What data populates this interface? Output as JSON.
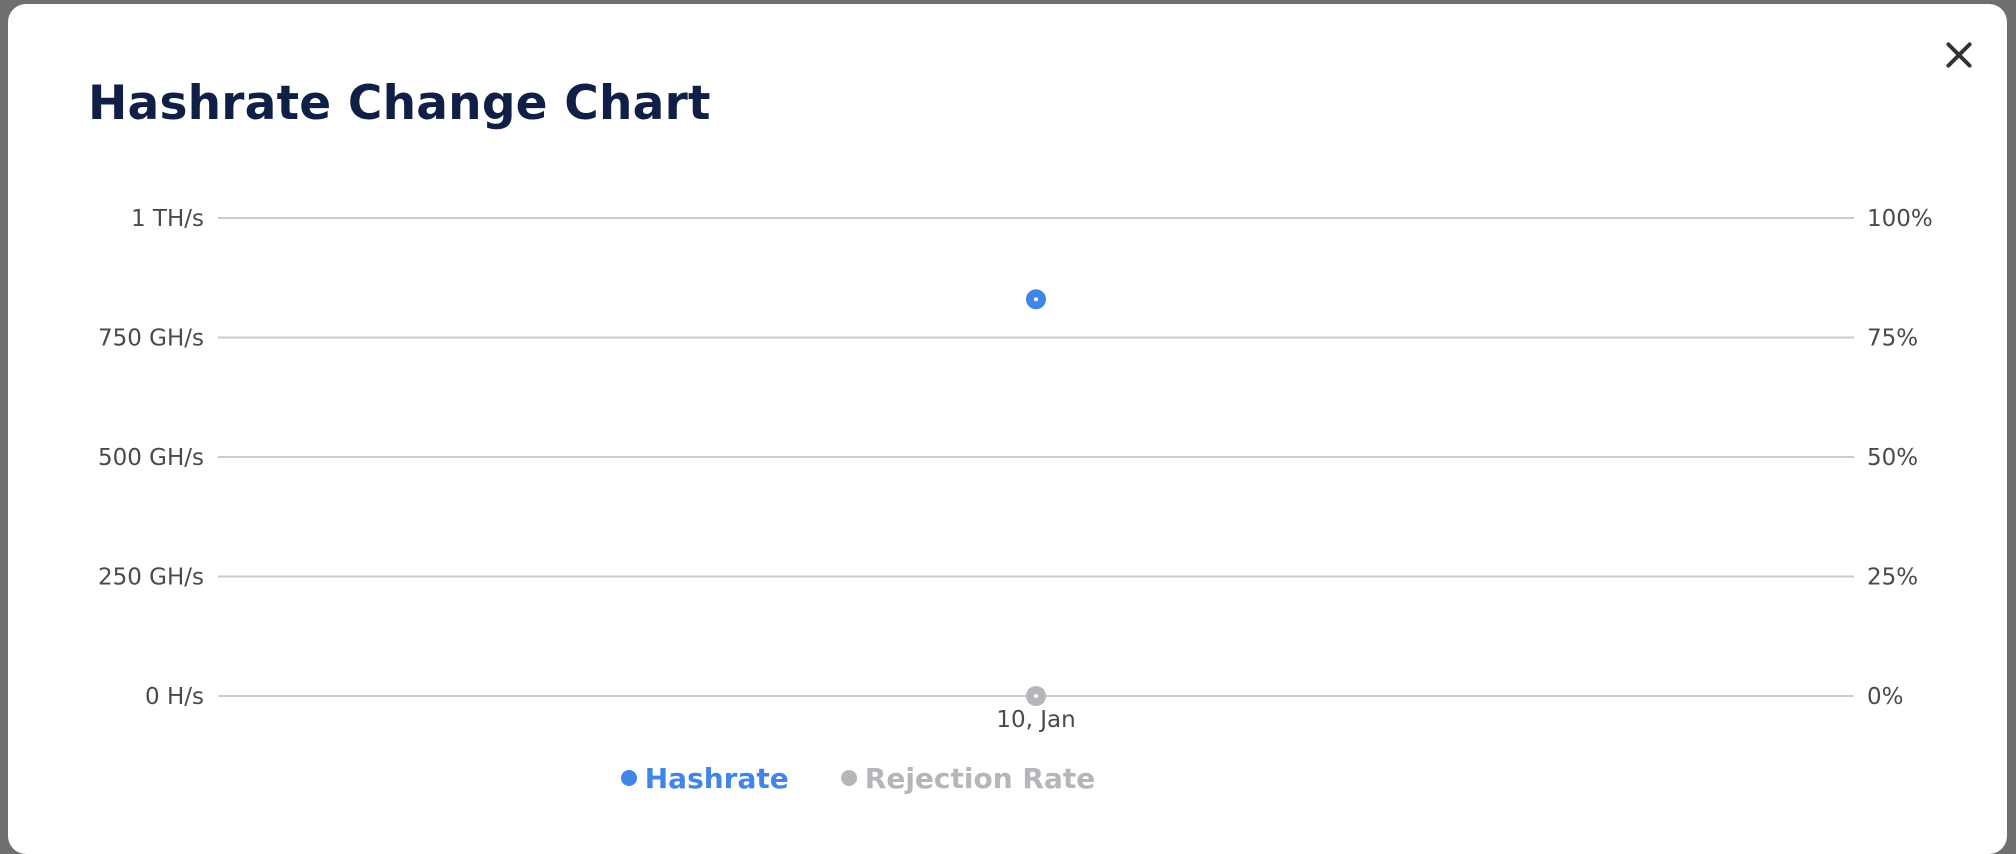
{
  "modal": {
    "title": "Hashrate Change Chart"
  },
  "colors": {
    "hashrate": "#4285e8",
    "rejection": "#b4b6ba",
    "grid": "#cccccc"
  },
  "chart_data": {
    "type": "line",
    "x": [
      "10, Jan"
    ],
    "series": [
      {
        "name": "Hashrate",
        "axis": "left",
        "values": [
          830
        ],
        "unit": "GH/s"
      },
      {
        "name": "Rejection Rate",
        "axis": "right",
        "values": [
          0
        ],
        "unit": "%"
      }
    ],
    "y_left": {
      "ticks": [
        "0 H/s",
        "250 GH/s",
        "500 GH/s",
        "750 GH/s",
        "1 TH/s"
      ],
      "range": [
        0,
        1000
      ]
    },
    "y_right": {
      "ticks": [
        "0%",
        "25%",
        "50%",
        "75%",
        "100%"
      ],
      "range": [
        0,
        100
      ]
    },
    "grid": true,
    "legend_position": "bottom"
  }
}
